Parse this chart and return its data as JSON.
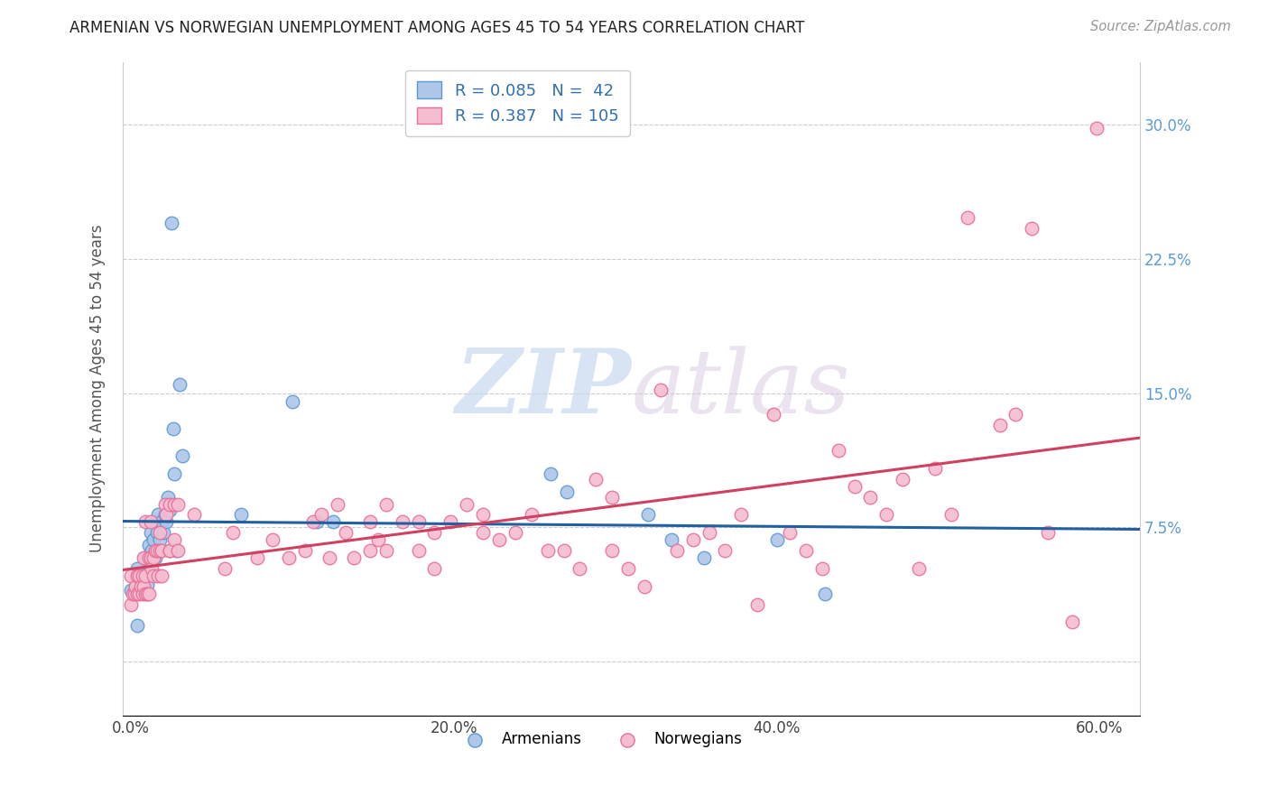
{
  "title": "ARMENIAN VS NORWEGIAN UNEMPLOYMENT AMONG AGES 45 TO 54 YEARS CORRELATION CHART",
  "source": "Source: ZipAtlas.com",
  "xlabel_ticks": [
    "0.0%",
    "20.0%",
    "40.0%",
    "60.0%"
  ],
  "xlabel_tick_vals": [
    0.0,
    0.2,
    0.4,
    0.6
  ],
  "ylabel_ticks_left": [
    ""
  ],
  "ylabel_ticks_right": [
    "30.0%",
    "22.5%",
    "15.0%",
    "7.5%"
  ],
  "ylabel_tick_vals": [
    0.0,
    0.075,
    0.15,
    0.225,
    0.3
  ],
  "ylabel": "Unemployment Among Ages 45 to 54 years",
  "xlim": [
    -0.005,
    0.625
  ],
  "ylim": [
    -0.03,
    0.335
  ],
  "armenians_color": "#aec6e8",
  "armenians_edge_color": "#5b9bd5",
  "norwegians_color": "#f5bdd0",
  "norwegians_edge_color": "#e8709a",
  "armenians_R": 0.085,
  "armenians_N": 42,
  "norwegians_R": 0.387,
  "norwegians_N": 105,
  "trend_armenians_color": "#2060a0",
  "trend_norwegians_color": "#d04060",
  "legend_label_armenians": "Armenians",
  "legend_label_norwegians": "Norwegians",
  "watermark_zip": "ZIP",
  "watermark_atlas": "atlas",
  "armenians_x": [
    0.0,
    0.003,
    0.004,
    0.006,
    0.007,
    0.008,
    0.009,
    0.01,
    0.011,
    0.012,
    0.012,
    0.013,
    0.014,
    0.015,
    0.015,
    0.016,
    0.017,
    0.018,
    0.019,
    0.02,
    0.021,
    0.022,
    0.023,
    0.024,
    0.025,
    0.026,
    0.027,
    0.028,
    0.03,
    0.032,
    0.004,
    0.068,
    0.1,
    0.115,
    0.125,
    0.26,
    0.27,
    0.32,
    0.335,
    0.355,
    0.4,
    0.43
  ],
  "armenians_y": [
    0.04,
    0.042,
    0.052,
    0.048,
    0.042,
    0.048,
    0.058,
    0.043,
    0.065,
    0.055,
    0.072,
    0.062,
    0.068,
    0.078,
    0.058,
    0.072,
    0.082,
    0.068,
    0.078,
    0.072,
    0.082,
    0.078,
    0.092,
    0.085,
    0.245,
    0.13,
    0.105,
    0.062,
    0.155,
    0.115,
    0.02,
    0.082,
    0.145,
    0.078,
    0.078,
    0.105,
    0.095,
    0.082,
    0.068,
    0.058,
    0.068,
    0.038
  ],
  "norwegians_x": [
    0.0,
    0.0,
    0.001,
    0.002,
    0.003,
    0.004,
    0.004,
    0.005,
    0.005,
    0.006,
    0.007,
    0.007,
    0.008,
    0.008,
    0.009,
    0.009,
    0.009,
    0.01,
    0.011,
    0.011,
    0.012,
    0.012,
    0.013,
    0.014,
    0.014,
    0.015,
    0.016,
    0.017,
    0.018,
    0.018,
    0.019,
    0.019,
    0.021,
    0.022,
    0.024,
    0.024,
    0.024,
    0.027,
    0.027,
    0.029,
    0.029,
    0.039,
    0.058,
    0.063,
    0.078,
    0.088,
    0.098,
    0.108,
    0.113,
    0.118,
    0.123,
    0.128,
    0.133,
    0.138,
    0.148,
    0.148,
    0.153,
    0.158,
    0.158,
    0.168,
    0.178,
    0.178,
    0.188,
    0.188,
    0.198,
    0.208,
    0.218,
    0.218,
    0.228,
    0.238,
    0.248,
    0.258,
    0.268,
    0.278,
    0.288,
    0.298,
    0.298,
    0.308,
    0.318,
    0.328,
    0.338,
    0.348,
    0.358,
    0.368,
    0.378,
    0.388,
    0.398,
    0.408,
    0.418,
    0.428,
    0.438,
    0.448,
    0.458,
    0.468,
    0.478,
    0.488,
    0.498,
    0.508,
    0.518,
    0.538,
    0.548,
    0.558,
    0.568,
    0.583,
    0.598
  ],
  "norwegians_y": [
    0.032,
    0.048,
    0.038,
    0.038,
    0.042,
    0.038,
    0.048,
    0.038,
    0.048,
    0.042,
    0.038,
    0.048,
    0.042,
    0.058,
    0.038,
    0.048,
    0.078,
    0.038,
    0.038,
    0.058,
    0.058,
    0.078,
    0.052,
    0.048,
    0.058,
    0.062,
    0.062,
    0.048,
    0.062,
    0.072,
    0.062,
    0.048,
    0.088,
    0.082,
    0.062,
    0.062,
    0.088,
    0.068,
    0.088,
    0.062,
    0.088,
    0.082,
    0.052,
    0.072,
    0.058,
    0.068,
    0.058,
    0.062,
    0.078,
    0.082,
    0.058,
    0.088,
    0.072,
    0.058,
    0.062,
    0.078,
    0.068,
    0.062,
    0.088,
    0.078,
    0.078,
    0.062,
    0.072,
    0.052,
    0.078,
    0.088,
    0.072,
    0.082,
    0.068,
    0.072,
    0.082,
    0.062,
    0.062,
    0.052,
    0.102,
    0.092,
    0.062,
    0.052,
    0.042,
    0.152,
    0.062,
    0.068,
    0.072,
    0.062,
    0.082,
    0.032,
    0.138,
    0.072,
    0.062,
    0.052,
    0.118,
    0.098,
    0.092,
    0.082,
    0.102,
    0.052,
    0.108,
    0.082,
    0.248,
    0.132,
    0.138,
    0.242,
    0.072,
    0.022,
    0.298
  ]
}
